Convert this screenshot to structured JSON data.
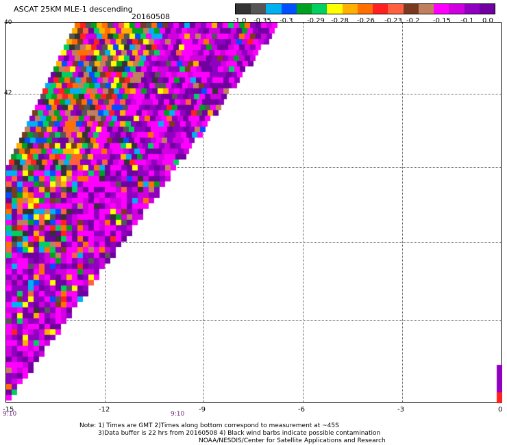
{
  "header": {
    "title": "ASCAT 25KM MLE-1 descending",
    "date": "20160508"
  },
  "colorbar": {
    "labels": [
      "-1.0",
      "-0.35",
      "-0.3",
      "-0.29",
      "-0.28",
      "-0.26",
      "-0.23",
      "-0.2",
      "-0.15",
      "-0.1",
      "0.0"
    ],
    "colors": [
      "#333333",
      "#555555",
      "#00b0f0",
      "#0050ff",
      "#00a020",
      "#00d060",
      "#ffff00",
      "#ffb000",
      "#ff7000",
      "#ff2020",
      "#ff6040",
      "#7a3a20",
      "#c08060",
      "#ff00ff",
      "#d000e0",
      "#9000c0",
      "#7000a0"
    ]
  },
  "axes": {
    "x_ticks": [
      "-15",
      "-12",
      "-9",
      "-6",
      "-3",
      "0"
    ],
    "y_ticks": [
      "40",
      "42",
      "",
      "",
      "",
      "",
      ""
    ],
    "time_labels": [
      "9:10",
      "9:10"
    ]
  },
  "notes": {
    "line1": "Note: 1) Times are GMT 2)Times along bottom correspond to measurement at ~45S",
    "line2": "3)Data buffer is 22 hrs from 20160508 4) Black wind barbs indicate possible contamination",
    "line3": "NOAA/NESDIS/Center for Satellite Applications and Research"
  }
}
